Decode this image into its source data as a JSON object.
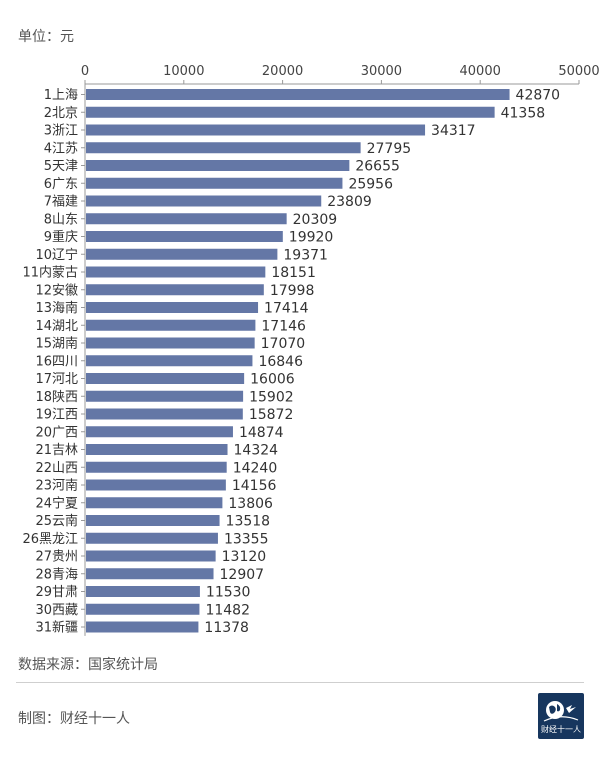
{
  "header": {
    "unit": "单位：元"
  },
  "footer": {
    "source": "数据来源：国家统计局",
    "credit": "制图：财经十一人",
    "logo_text": "财经十一人"
  },
  "colors": {
    "bar": "#6477a6",
    "axis": "#999999",
    "text": "#333333"
  },
  "chart_data": {
    "type": "bar",
    "orientation": "horizontal",
    "title": "",
    "xlabel": "",
    "ylabel": "",
    "xlim": [
      0,
      50000
    ],
    "ticks": [
      0,
      10000,
      20000,
      30000,
      40000,
      50000
    ],
    "tick_labels": [
      "0",
      "10000",
      "20000",
      "30000",
      "40000",
      "50000"
    ],
    "axis_position": "top",
    "grid": false,
    "categories": [
      "1上海",
      "2北京",
      "3浙江",
      "4江苏",
      "5天津",
      "6广东",
      "7福建",
      "8山东",
      "9重庆",
      "10辽宁",
      "11内蒙古",
      "12安徽",
      "13海南",
      "14湖北",
      "15湖南",
      "16四川",
      "17河北",
      "18陕西",
      "19江西",
      "20广西",
      "21吉林",
      "22山西",
      "23河南",
      "24宁夏",
      "25云南",
      "26黑龙江",
      "27贵州",
      "28青海",
      "29甘肃",
      "30西藏",
      "31新疆"
    ],
    "values": [
      42870,
      41358,
      34317,
      27795,
      26655,
      25956,
      23809,
      20309,
      19920,
      19371,
      18151,
      17998,
      17414,
      17146,
      17070,
      16846,
      16006,
      15902,
      15872,
      14874,
      14324,
      14240,
      14156,
      13806,
      13518,
      13355,
      13120,
      12907,
      11530,
      11482,
      11378
    ],
    "value_labels": [
      "42870",
      "41358",
      "34317",
      "27795",
      "26655",
      "25956",
      "23809",
      "20309",
      "19920",
      "19371",
      "18151",
      "17998",
      "17414",
      "17146",
      "17070",
      "16846",
      "16006",
      "15902",
      "15872",
      "14874",
      "14324",
      "14240",
      "14156",
      "13806",
      "13518",
      "13355",
      "13120",
      "12907",
      "11530",
      "11482",
      "11378"
    ]
  }
}
